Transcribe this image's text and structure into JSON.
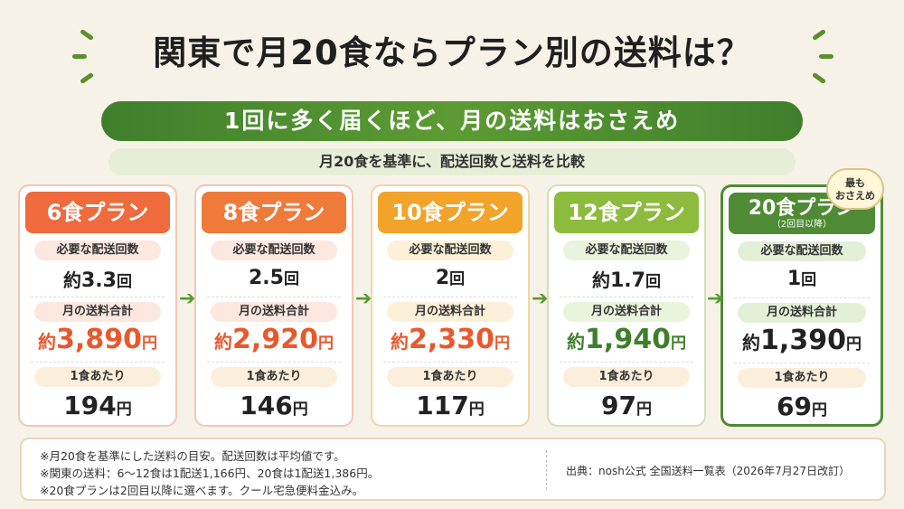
{
  "title": "関東で月20食ならプラン別の送料は？",
  "banner": "1回に多く届くほど、月の送料はおさえめ",
  "subbanner": "月20食を基準に、配送回数と送料を比較",
  "badge": {
    "line1": "最も",
    "line2": "おさえめ"
  },
  "labels": {
    "deliveries": "必要な配送回数",
    "monthly": "月の送料合計",
    "per_meal": "1食あたり"
  },
  "plans": [
    {
      "name": "6食プラン",
      "sub": "",
      "deliveries_prefix": "約",
      "deliveries": "3.3",
      "deliveries_unit": "回",
      "monthly_prefix": "約",
      "monthly": "3,890",
      "monthly_unit": "円",
      "per_meal": "194",
      "per_meal_unit": "円"
    },
    {
      "name": "8食プラン",
      "sub": "",
      "deliveries_prefix": "",
      "deliveries": "2.5",
      "deliveries_unit": "回",
      "monthly_prefix": "約",
      "monthly": "2,920",
      "monthly_unit": "円",
      "per_meal": "146",
      "per_meal_unit": "円"
    },
    {
      "name": "10食プラン",
      "sub": "",
      "deliveries_prefix": "",
      "deliveries": "2",
      "deliveries_unit": "回",
      "monthly_prefix": "約",
      "monthly": "2,330",
      "monthly_unit": "円",
      "per_meal": "117",
      "per_meal_unit": "円"
    },
    {
      "name": "12食プラン",
      "sub": "",
      "deliveries_prefix": "約",
      "deliveries": "1.7",
      "deliveries_unit": "回",
      "monthly_prefix": "約",
      "monthly": "1,940",
      "monthly_unit": "円",
      "per_meal": "97",
      "per_meal_unit": "円"
    },
    {
      "name": "20食プラン",
      "sub": "（2回目以降）",
      "deliveries_prefix": "",
      "deliveries": "1",
      "deliveries_unit": "回",
      "monthly_prefix": "約",
      "monthly": "1,390",
      "monthly_unit": "円",
      "per_meal": "69",
      "per_meal_unit": "円"
    }
  ],
  "colors": {
    "plan_heads": [
      "#ef6a3c",
      "#ef7a3a",
      "#f2a32a",
      "#8dbb3d",
      "#4e8b34"
    ],
    "monthly_values": [
      "#e9582c",
      "#e9582c",
      "#e9582c",
      "#3f7f2c",
      "#222222"
    ],
    "card_borders": [
      "#f1c7b8",
      "#f1c7b8",
      "#f1d6a8",
      "#cfe0b5",
      "#4e8b34"
    ],
    "pill_bg": [
      "#fde8e0",
      "#fde8e0",
      "#fdf0d8",
      "#eaf3dc",
      "#e3efd6"
    ]
  },
  "notes": [
    "※月20食を基準にした送料の目安。配送回数は平均値です。",
    "※関東の送料：6〜12食は1配送1,166円、20食は1配送1,386円。",
    "※20食プランは2回目以降に選べます。クール宅急便料金込み。"
  ],
  "source": "出典：nosh公式 全国送料一覧表（2026年7月27日改訂）",
  "chart_data": {
    "type": "table",
    "title": "関東で月20食ならプラン別の送料は？",
    "categories": [
      "6食プラン",
      "8食プラン",
      "10食プラン",
      "12食プラン",
      "20食プラン"
    ],
    "series": [
      {
        "name": "必要な配送回数",
        "values": [
          3.3,
          2.5,
          2,
          1.7,
          1
        ]
      },
      {
        "name": "月の送料合計",
        "values": [
          3890,
          2920,
          2330,
          1940,
          1390
        ]
      },
      {
        "name": "1食あたり",
        "values": [
          194,
          146,
          117,
          97,
          69
        ]
      }
    ]
  }
}
